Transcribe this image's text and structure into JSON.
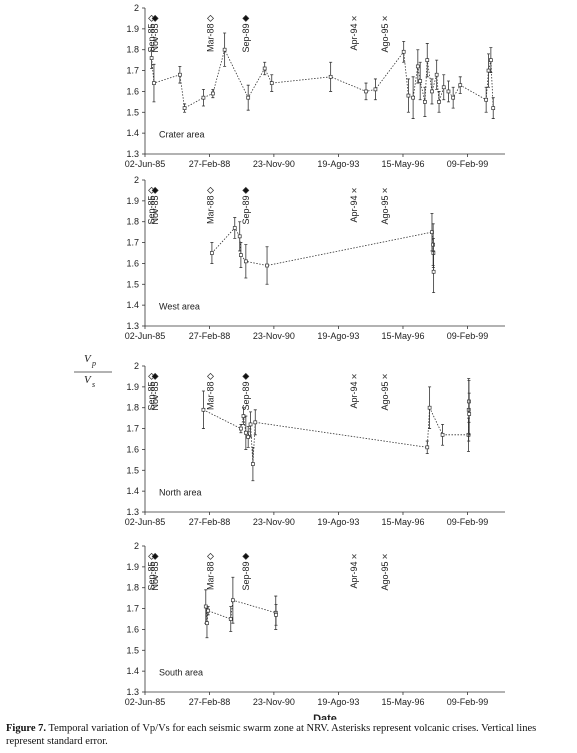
{
  "shared_ylabel": {
    "numerator": "V",
    "numerator_sub": "p",
    "denominator": "V",
    "denominator_sub": "s"
  },
  "caption": {
    "label": "Figure 7.",
    "text": "Temporal variation of Vp/Vs for each seismic swarm zone at NRV. Asterisks represent volcanic crises. Vertical lines represent standard error."
  },
  "chart_data": [
    {
      "type": "errorbar-line",
      "panel_label": "Crater area",
      "xlim": [
        1985.42,
        2000.7
      ],
      "ylim": [
        1.3,
        2
      ],
      "xticks": [
        {
          "value": 1985.42,
          "label": "02-Jun-85"
        },
        {
          "value": 1988.16,
          "label": "27-Feb-88"
        },
        {
          "value": 1990.89,
          "label": "23-Nov-90"
        },
        {
          "value": 1993.63,
          "label": "19-Ago-93"
        },
        {
          "value": 1996.37,
          "label": "15-May-96"
        },
        {
          "value": 1999.11,
          "label": "09-Feb-99"
        }
      ],
      "yticks": [
        1.3,
        1.4,
        1.5,
        1.6,
        1.7,
        1.8,
        1.9,
        2
      ],
      "color": "#333333",
      "x": [
        1985.7,
        1985.8,
        1986.9,
        1987.1,
        1987.9,
        1988.3,
        1988.8,
        1989.8,
        1990.5,
        1990.8,
        1993.3,
        1994.8,
        1995.2,
        1996.4,
        1996.6,
        1996.8,
        1997.0,
        1997.1,
        1997.3,
        1997.4,
        1997.6,
        1997.8,
        1997.9,
        1998.1,
        1998.3,
        1998.5,
        1998.8,
        1999.9,
        2000.0,
        2000.1,
        2000.2
      ],
      "values": [
        1.76,
        1.64,
        1.68,
        1.52,
        1.57,
        1.59,
        1.8,
        1.57,
        1.71,
        1.64,
        1.67,
        1.6,
        1.61,
        1.79,
        1.58,
        1.57,
        1.72,
        1.65,
        1.55,
        1.75,
        1.6,
        1.68,
        1.55,
        1.62,
        1.6,
        1.57,
        1.63,
        1.56,
        1.7,
        1.75,
        1.52
      ],
      "errors": [
        0.05,
        0.09,
        0.04,
        0.02,
        0.04,
        0.02,
        0.08,
        0.06,
        0.03,
        0.04,
        0.07,
        0.04,
        0.05,
        0.05,
        0.08,
        0.1,
        0.08,
        0.09,
        0.07,
        0.08,
        0.06,
        0.07,
        0.05,
        0.06,
        0.05,
        0.05,
        0.04,
        0.06,
        0.08,
        0.06,
        0.05
      ],
      "annotations": [
        {
          "text": "Sep-85",
          "x": 1985.7,
          "y": 1.95,
          "marker": "diamond-open"
        },
        {
          "text": "Nov-85",
          "x": 1985.85,
          "y": 1.95,
          "marker": "diamond-filled"
        },
        {
          "text": "Mar-88",
          "x": 1988.2,
          "y": 1.95,
          "marker": "diamond-open"
        },
        {
          "text": "Sep-89",
          "x": 1989.7,
          "y": 1.95,
          "marker": "diamond-filled"
        },
        {
          "text": "Apr-94",
          "x": 1994.3,
          "y": 1.95,
          "marker": "cross"
        },
        {
          "text": "Ago-95",
          "x": 1995.6,
          "y": 1.95,
          "marker": "cross"
        }
      ]
    },
    {
      "type": "errorbar-line",
      "panel_label": "West area",
      "xlim": [
        1985.42,
        2000.7
      ],
      "ylim": [
        1.3,
        2
      ],
      "xticks": [
        {
          "value": 1985.42,
          "label": "02-Jun-85"
        },
        {
          "value": 1988.16,
          "label": "27-Feb-88"
        },
        {
          "value": 1990.89,
          "label": "23-Nov-90"
        },
        {
          "value": 1993.63,
          "label": "19-Ago-93"
        },
        {
          "value": 1996.37,
          "label": "15-May-96"
        },
        {
          "value": 1999.11,
          "label": "09-Feb-99"
        }
      ],
      "yticks": [
        1.3,
        1.4,
        1.5,
        1.6,
        1.7,
        1.8,
        1.9,
        2
      ],
      "color": "#333333",
      "x": [
        1988.26,
        1989.23,
        1989.44,
        1989.49,
        1989.7,
        1990.6,
        1997.6,
        1997.65,
        1997.66,
        1997.67
      ],
      "values": [
        1.65,
        1.77,
        1.73,
        1.64,
        1.61,
        1.59,
        1.75,
        1.69,
        1.65,
        1.56
      ],
      "errors": [
        0.05,
        0.05,
        0.07,
        0.06,
        0.08,
        0.09,
        0.09,
        0.1,
        0.07,
        0.1
      ],
      "annotations": [
        {
          "text": "Sep-85",
          "x": 1985.7,
          "y": 1.95,
          "marker": "diamond-open"
        },
        {
          "text": "Nov-85",
          "x": 1985.85,
          "y": 1.95,
          "marker": "diamond-filled"
        },
        {
          "text": "Mar-88",
          "x": 1988.2,
          "y": 1.95,
          "marker": "diamond-open"
        },
        {
          "text": "Sep-89",
          "x": 1989.7,
          "y": 1.95,
          "marker": "diamond-filled"
        },
        {
          "text": "Apr-94",
          "x": 1994.3,
          "y": 1.95,
          "marker": "cross"
        },
        {
          "text": "Ago-95",
          "x": 1995.6,
          "y": 1.95,
          "marker": "cross"
        }
      ]
    },
    {
      "type": "errorbar-line",
      "panel_label": "North area",
      "xlim": [
        1985.42,
        2000.7
      ],
      "ylim": [
        1.3,
        2
      ],
      "xticks": [
        {
          "value": 1985.42,
          "label": "02-Jun-85"
        },
        {
          "value": 1988.16,
          "label": "27-Feb-88"
        },
        {
          "value": 1990.89,
          "label": "23-Nov-90"
        },
        {
          "value": 1993.63,
          "label": "19-Ago-93"
        },
        {
          "value": 1996.37,
          "label": "15-May-96"
        },
        {
          "value": 1999.11,
          "label": "09-Feb-99"
        }
      ],
      "yticks": [
        1.3,
        1.4,
        1.5,
        1.6,
        1.7,
        1.8,
        1.9,
        2
      ],
      "color": "#333333",
      "x": [
        1987.9,
        1989.49,
        1989.6,
        1989.7,
        1989.8,
        1989.9,
        1990.0,
        1990.1,
        1997.4,
        1997.5,
        1998.05,
        1999.15,
        1999.16,
        1999.17,
        1999.18
      ],
      "values": [
        1.79,
        1.7,
        1.76,
        1.68,
        1.66,
        1.72,
        1.53,
        1.73,
        1.61,
        1.8,
        1.67,
        1.67,
        1.79,
        1.83,
        1.77
      ],
      "errors": [
        0.09,
        0.02,
        0.04,
        0.08,
        0.05,
        0.06,
        0.08,
        0.06,
        0.03,
        0.1,
        0.05,
        0.08,
        0.15,
        0.1,
        0.1
      ],
      "annotations": [
        {
          "text": "Sep-85",
          "x": 1985.7,
          "y": 1.95,
          "marker": "diamond-open"
        },
        {
          "text": "Nov-85",
          "x": 1985.85,
          "y": 1.95,
          "marker": "diamond-filled"
        },
        {
          "text": "Mar-88",
          "x": 1988.2,
          "y": 1.95,
          "marker": "diamond-open"
        },
        {
          "text": "Sep-89",
          "x": 1989.7,
          "y": 1.95,
          "marker": "diamond-filled"
        },
        {
          "text": "Apr-94",
          "x": 1994.3,
          "y": 1.95,
          "marker": "cross"
        },
        {
          "text": "Ago-95",
          "x": 1995.6,
          "y": 1.95,
          "marker": "cross"
        }
      ]
    },
    {
      "type": "errorbar-line",
      "panel_label": "South area",
      "xlabel": "Date",
      "xlim": [
        1985.42,
        2000.7
      ],
      "ylim": [
        1.3,
        2
      ],
      "xticks": [
        {
          "value": 1985.42,
          "label": "02-Jun-85"
        },
        {
          "value": 1988.16,
          "label": "27-Feb-88"
        },
        {
          "value": 1990.89,
          "label": "23-Nov-90"
        },
        {
          "value": 1993.63,
          "label": "19-Ago-93"
        },
        {
          "value": 1996.37,
          "label": "15-May-96"
        },
        {
          "value": 1999.11,
          "label": "09-Feb-99"
        }
      ],
      "yticks": [
        1.3,
        1.4,
        1.5,
        1.6,
        1.7,
        1.8,
        1.9,
        2
      ],
      "color": "#333333",
      "x": [
        1988.0,
        1988.05,
        1988.1,
        1989.06,
        1989.15,
        1990.97,
        1990.98
      ],
      "values": [
        1.71,
        1.63,
        1.69,
        1.65,
        1.74,
        1.68,
        1.67
      ],
      "errors": [
        0.08,
        0.07,
        0.02,
        0.06,
        0.11,
        0.08,
        0.05
      ],
      "annotations": [
        {
          "text": "Sep-85",
          "x": 1985.7,
          "y": 1.95,
          "marker": "diamond-open"
        },
        {
          "text": "Nov-85",
          "x": 1985.85,
          "y": 1.95,
          "marker": "diamond-filled"
        },
        {
          "text": "Mar-88",
          "x": 1988.2,
          "y": 1.95,
          "marker": "diamond-open"
        },
        {
          "text": "Sep-89",
          "x": 1989.7,
          "y": 1.95,
          "marker": "diamond-filled"
        },
        {
          "text": "Apr-94",
          "x": 1994.3,
          "y": 1.95,
          "marker": "cross"
        },
        {
          "text": "Ago-95",
          "x": 1995.6,
          "y": 1.95,
          "marker": "cross"
        }
      ]
    }
  ]
}
